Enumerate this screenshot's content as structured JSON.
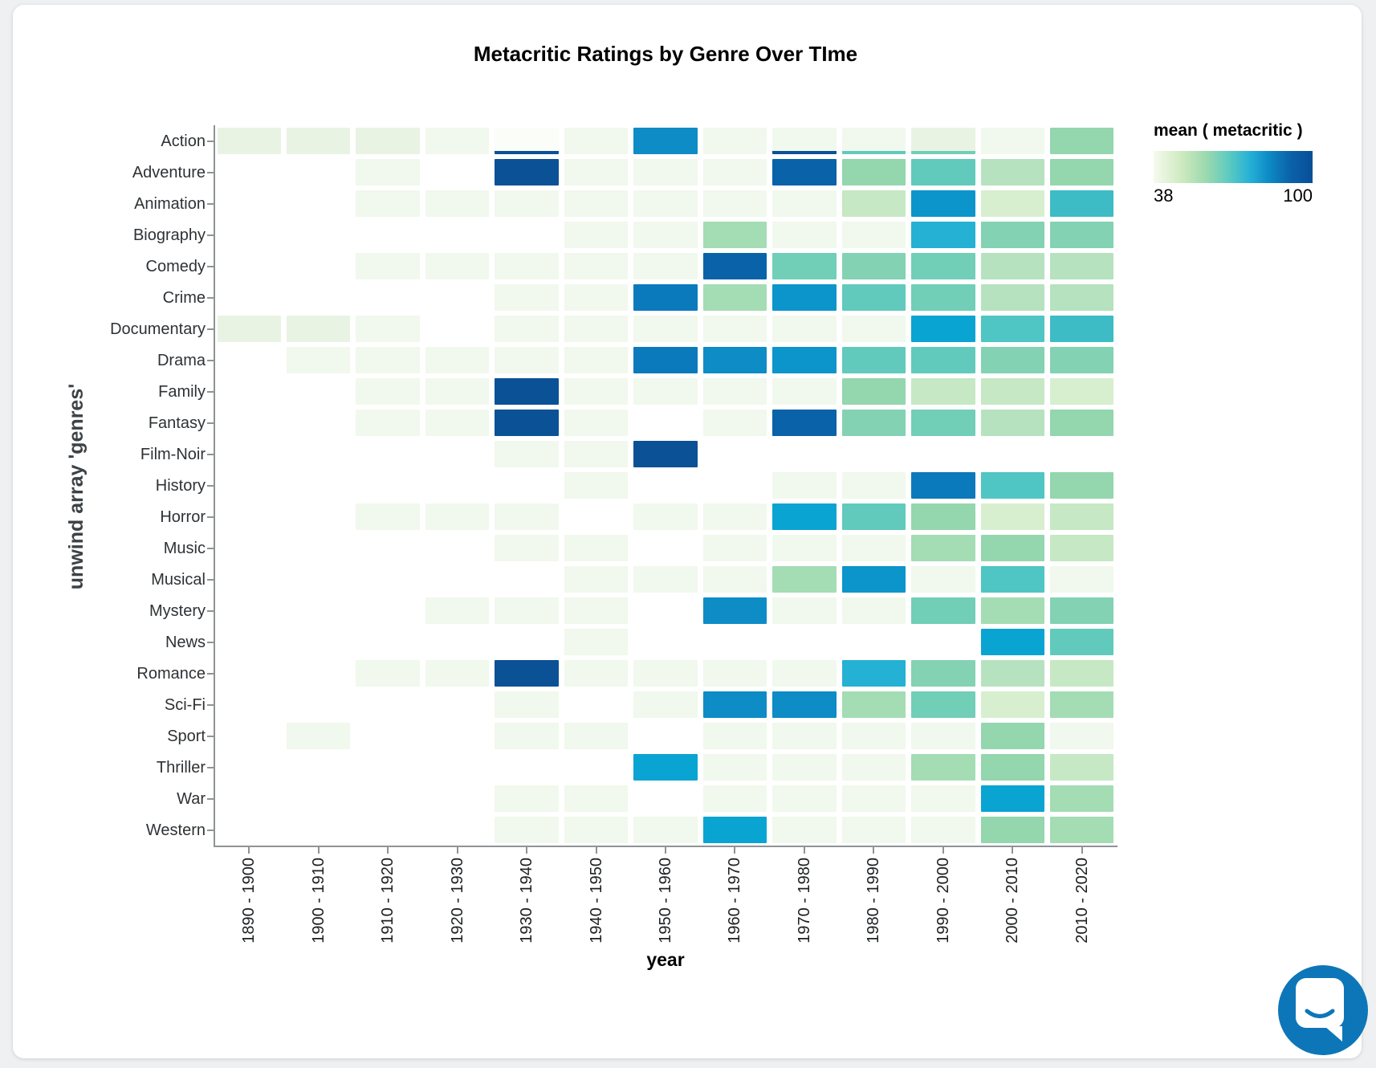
{
  "page": {
    "background_color": "#eef0f1",
    "card_color": "#ffffff"
  },
  "chart_data": {
    "type": "heatmap",
    "title": "Metacritic Ratings by Genre Over TIme",
    "xlabel": "year",
    "ylabel": "unwind array 'genres'",
    "x_categories": [
      "1890 - 1900",
      "1900 - 1910",
      "1910 - 1920",
      "1920 - 1930",
      "1930 - 1940",
      "1940 - 1950",
      "1950 - 1960",
      "1960 - 1970",
      "1970 - 1980",
      "1980 - 1990",
      "1990 - 2000",
      "2000 - 2010",
      "2010 - 2020"
    ],
    "y_categories": [
      "Action",
      "Adventure",
      "Animation",
      "Biography",
      "Comedy",
      "Crime",
      "Documentary",
      "Drama",
      "Family",
      "Fantasy",
      "Film-Noir",
      "History",
      "Horror",
      "Music",
      "Musical",
      "Mystery",
      "News",
      "Romance",
      "Sci-Fi",
      "Sport",
      "Thriller",
      "War",
      "Western"
    ],
    "legend": {
      "title": "mean ( metacritic )",
      "min": "38",
      "max": "100",
      "gradient": [
        "#f6faee 0%",
        "#cdeabf 18%",
        "#9cd9ae 33%",
        "#5ecbc0 47%",
        "#27b2d6 60%",
        "#0d8cc6 72%",
        "#0a62a9 86%",
        "#084e97 100%"
      ]
    },
    "cell_format": "palette code per cell; '-' = no data (white); 'code!code2' = cell of color code with thin bottom stripe of color code2",
    "palette": {
      "w": {
        "color": "#fbfdf9",
        "approx_mean": 38
      },
      "p1": {
        "color": "#f1f8ed",
        "approx_mean": 40
      },
      "p2": {
        "color": "#e9f3e3",
        "approx_mean": 41
      },
      "lg3": {
        "color": "#d7efcf",
        "approx_mean": 48
      },
      "lg2": {
        "color": "#c6e8c4",
        "approx_mean": 50
      },
      "lg1": {
        "color": "#b6e2bf",
        "approx_mean": 52
      },
      "g2": {
        "color": "#a4dcb4",
        "approx_mean": 55
      },
      "g1": {
        "color": "#94d6ae",
        "approx_mean": 57
      },
      "tg2": {
        "color": "#83d2b3",
        "approx_mean": 60
      },
      "tg1": {
        "color": "#71ceb7",
        "approx_mean": 62
      },
      "t2": {
        "color": "#61cabc",
        "approx_mean": 64
      },
      "t1": {
        "color": "#4fc5c4",
        "approx_mean": 66
      },
      "tc": {
        "color": "#3dbcc6",
        "approx_mean": 68
      },
      "cy2": {
        "color": "#25b1d4",
        "approx_mean": 72
      },
      "cy1": {
        "color": "#09a4d2",
        "approx_mean": 75
      },
      "cb": {
        "color": "#0b95cb",
        "approx_mean": 78
      },
      "b2": {
        "color": "#0d8cc6",
        "approx_mean": 80
      },
      "b1": {
        "color": "#0b7abc",
        "approx_mean": 82
      },
      "nv2": {
        "color": "#0a62a9",
        "approx_mean": 88
      },
      "nv1": {
        "color": "#0b5196",
        "approx_mean": 93
      }
    },
    "cells": [
      [
        "p2",
        "p2",
        "p2",
        "p1",
        "w!nv1",
        "p1",
        "b2",
        "p1",
        "p1!nv1",
        "p1!t2",
        "p2!tg1",
        "p1",
        "g1"
      ],
      [
        "-",
        "-",
        "p1",
        "-",
        "nv1",
        "p1",
        "p1",
        "p1",
        "nv2",
        "g1",
        "t2",
        "lg1",
        "g1"
      ],
      [
        "-",
        "-",
        "p1",
        "p1",
        "p1",
        "p1",
        "p1",
        "p1",
        "p1",
        "lg2",
        "cb",
        "lg3",
        "tc"
      ],
      [
        "-",
        "-",
        "-",
        "-",
        "-",
        "p1",
        "p1",
        "g2",
        "p1",
        "p1",
        "cy2",
        "tg2",
        "tg2"
      ],
      [
        "-",
        "-",
        "p1",
        "p1",
        "p1",
        "p1",
        "p1",
        "nv2",
        "tg1",
        "tg2",
        "tg1",
        "lg1",
        "lg1"
      ],
      [
        "-",
        "-",
        "-",
        "-",
        "p1",
        "p1",
        "b1",
        "g2",
        "cb",
        "t2",
        "tg1",
        "lg1",
        "lg1"
      ],
      [
        "p2",
        "p2",
        "p1",
        "-",
        "p1",
        "p1",
        "p1",
        "p1",
        "p1",
        "p1",
        "cy1",
        "t1",
        "tc"
      ],
      [
        "-",
        "p1",
        "p1",
        "p1",
        "p1",
        "p1",
        "b1",
        "b2",
        "cb",
        "t2",
        "t2",
        "tg2",
        "tg2"
      ],
      [
        "-",
        "-",
        "p1",
        "p1",
        "nv1",
        "p1",
        "p1",
        "p1",
        "p1",
        "g1",
        "lg2",
        "lg2",
        "lg3"
      ],
      [
        "-",
        "-",
        "p1",
        "p1",
        "nv1",
        "p1",
        "-",
        "p1",
        "nv2",
        "tg2",
        "tg1",
        "lg1",
        "g1"
      ],
      [
        "-",
        "-",
        "-",
        "-",
        "p1",
        "p1",
        "nv1",
        "-",
        "-",
        "-",
        "-",
        "-",
        "-"
      ],
      [
        "-",
        "-",
        "-",
        "-",
        "-",
        "p1",
        "-",
        "-",
        "p1",
        "p1",
        "b1",
        "t1",
        "g1"
      ],
      [
        "-",
        "-",
        "p1",
        "p1",
        "p1",
        "-",
        "p1",
        "p1",
        "cy1",
        "t2",
        "g1",
        "lg3",
        "lg2"
      ],
      [
        "-",
        "-",
        "-",
        "-",
        "p1",
        "p1",
        "-",
        "p1",
        "p1",
        "p1",
        "g2",
        "g1",
        "lg2"
      ],
      [
        "-",
        "-",
        "-",
        "-",
        "-",
        "p1",
        "p1",
        "p1",
        "g2",
        "cb",
        "p1",
        "t1",
        "p1"
      ],
      [
        "-",
        "-",
        "-",
        "p1",
        "p1",
        "p1",
        "-",
        "b2",
        "p1",
        "p1",
        "tg1",
        "g2",
        "tg2"
      ],
      [
        "-",
        "-",
        "-",
        "-",
        "-",
        "p1",
        "-",
        "-",
        "-",
        "-",
        "-",
        "cy1",
        "t2"
      ],
      [
        "-",
        "-",
        "p1",
        "p1",
        "nv1",
        "p1",
        "p1",
        "p1",
        "p1",
        "cy2",
        "tg2",
        "lg1",
        "lg2"
      ],
      [
        "-",
        "-",
        "-",
        "-",
        "p1",
        "-",
        "p1",
        "b2",
        "b2",
        "g2",
        "tg1",
        "lg3",
        "g2"
      ],
      [
        "-",
        "p1",
        "-",
        "-",
        "p1",
        "p1",
        "-",
        "p1",
        "p1",
        "p1",
        "p1",
        "g1",
        "p1"
      ],
      [
        "-",
        "-",
        "-",
        "-",
        "-",
        "-",
        "cy1",
        "p1",
        "p1",
        "p1",
        "g2",
        "g1",
        "lg2"
      ],
      [
        "-",
        "-",
        "-",
        "-",
        "p1",
        "p1",
        "-",
        "p1",
        "p1",
        "p1",
        "p1",
        "cy1",
        "g2"
      ],
      [
        "-",
        "-",
        "-",
        "-",
        "p1",
        "p1",
        "p1",
        "cy1",
        "p1",
        "p1",
        "p1",
        "g1",
        "g2"
      ]
    ]
  },
  "chat": {
    "background": "#0d76b8",
    "bubble_color": "#ffffff"
  }
}
